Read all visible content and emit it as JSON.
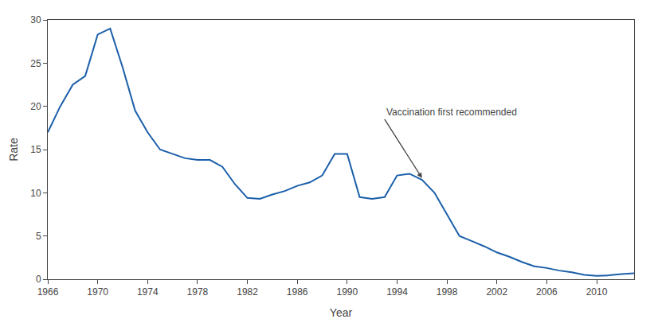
{
  "chart_data": {
    "type": "line",
    "x": [
      1966,
      1967,
      1968,
      1969,
      1970,
      1971,
      1972,
      1973,
      1974,
      1975,
      1976,
      1977,
      1978,
      1979,
      1980,
      1981,
      1982,
      1983,
      1984,
      1985,
      1986,
      1987,
      1988,
      1989,
      1990,
      1991,
      1992,
      1993,
      1994,
      1995,
      1996,
      1997,
      1998,
      1999,
      2000,
      2001,
      2002,
      2003,
      2004,
      2005,
      2006,
      2007,
      2008,
      2009,
      2010,
      2011,
      2012,
      2013
    ],
    "values": [
      17.0,
      20.0,
      22.5,
      23.5,
      28.3,
      29.0,
      24.5,
      19.5,
      17.0,
      15.0,
      14.5,
      14.0,
      13.8,
      13.8,
      13.0,
      11.0,
      9.4,
      9.3,
      9.8,
      10.2,
      10.8,
      11.2,
      12.0,
      14.5,
      14.5,
      9.5,
      9.3,
      9.5,
      12.0,
      12.2,
      11.5,
      10.0,
      7.5,
      5.0,
      4.4,
      3.8,
      3.1,
      2.6,
      2.0,
      1.5,
      1.3,
      1.0,
      0.8,
      0.5,
      0.4,
      0.45,
      0.6,
      0.7
    ],
    "color": "#1b5faa",
    "xlabel": "Year",
    "ylabel": "Rate",
    "xlim": [
      1966,
      2013
    ],
    "ylim": [
      0,
      30
    ],
    "xticks": [
      1966,
      1970,
      1974,
      1978,
      1982,
      1986,
      1990,
      1994,
      1998,
      2002,
      2006,
      2010
    ],
    "yticks": [
      0,
      5,
      10,
      15,
      20,
      25,
      30
    ],
    "grid": false,
    "annotations": [
      {
        "text": "Vaccination first recommended",
        "x": 1996,
        "y": 11.7,
        "text_x": 1993.0,
        "text_y": 18.5
      }
    ]
  }
}
